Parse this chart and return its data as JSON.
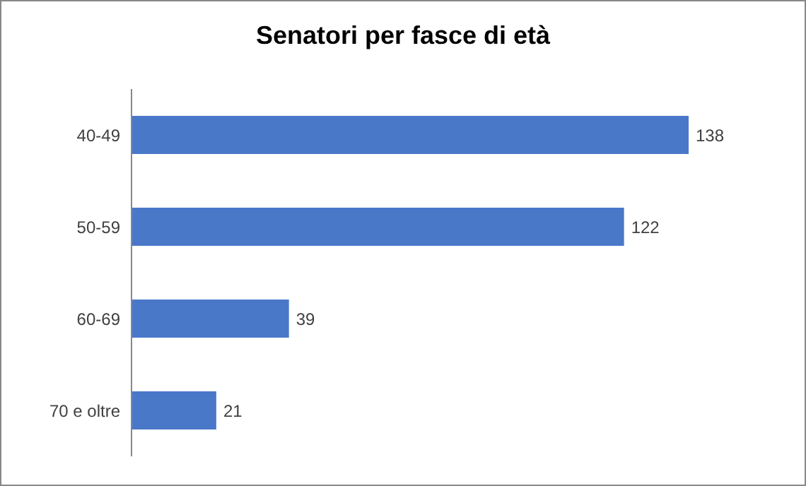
{
  "chart_data": {
    "type": "bar",
    "title": "Senatori per fasce di età",
    "orientation": "horizontal",
    "categories": [
      "40-49",
      "50-59",
      "60-69",
      "70 e oltre"
    ],
    "values": [
      138,
      122,
      39,
      21
    ],
    "color": "#4a78c9",
    "data_labels": true
  }
}
